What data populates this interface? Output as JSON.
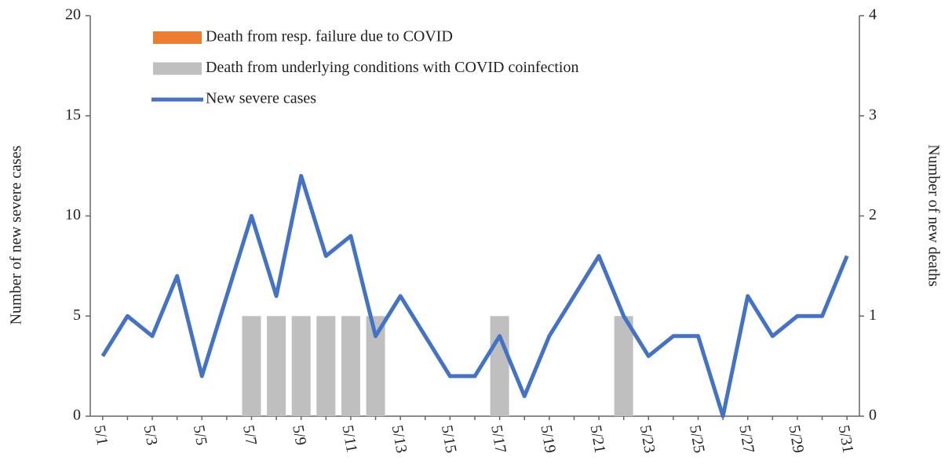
{
  "chart_data": {
    "type": "bar-line",
    "categories": [
      "5/1",
      null,
      "5/3",
      null,
      "5/5",
      null,
      "5/7",
      null,
      "5/9",
      null,
      "5/11",
      null,
      "5/13",
      null,
      "5/15",
      null,
      "5/17",
      null,
      "5/19",
      null,
      "5/21",
      null,
      "5/23",
      null,
      "5/25",
      null,
      "5/27",
      null,
      "5/29",
      null,
      "5/31"
    ],
    "series": [
      {
        "name": "Death from resp. failure due to COVID",
        "type": "bar",
        "axis": "y2",
        "color": "#ed7d31",
        "values": [
          0,
          0,
          0,
          0,
          0,
          0,
          0,
          0,
          0,
          0,
          0,
          0,
          0,
          0,
          0,
          0,
          0,
          0,
          0,
          0,
          0,
          0,
          0,
          0,
          0,
          0,
          0,
          0,
          0,
          0,
          0
        ]
      },
      {
        "name": "Death from underlying conditions with COVID coinfection",
        "type": "bar",
        "axis": "y2",
        "color": "#bfbfbf",
        "values": [
          0,
          0,
          0,
          0,
          0,
          0,
          1,
          1,
          1,
          1,
          1,
          1,
          0,
          0,
          0,
          0,
          1,
          0,
          0,
          0,
          0,
          1,
          0,
          0,
          0,
          0,
          0,
          0,
          0,
          0,
          0
        ]
      },
      {
        "name": "New severe cases",
        "type": "line",
        "color": "#4472c4",
        "values": [
          3,
          5,
          4,
          7,
          2,
          6,
          10,
          6,
          12,
          8,
          9,
          4,
          6,
          4,
          2,
          2,
          4,
          1,
          4,
          6,
          8,
          5,
          3,
          4,
          4,
          0,
          6,
          4,
          5,
          5,
          8
        ]
      }
    ],
    "y_label": "Number of new severe cases",
    "y2_label": "Number of new deaths",
    "ylim": [
      0,
      20
    ],
    "yticks": [
      0,
      5,
      10,
      15,
      20
    ],
    "y2lim": [
      0,
      4
    ],
    "y2ticks": [
      0,
      1,
      2,
      3,
      4
    ],
    "grid": false,
    "legend": "top-left"
  }
}
